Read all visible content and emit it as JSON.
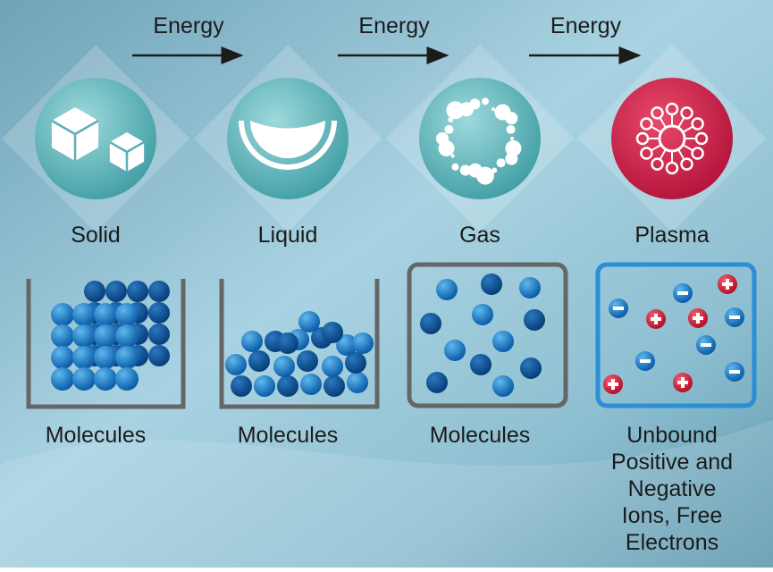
{
  "transitions": [
    {
      "label": "Energy"
    },
    {
      "label": "Energy"
    },
    {
      "label": "Energy"
    }
  ],
  "states": [
    {
      "name": "Solid",
      "caption": [
        "Molecules"
      ]
    },
    {
      "name": "Liquid",
      "caption": [
        "Molecules"
      ]
    },
    {
      "name": "Gas",
      "caption": [
        "Molecules"
      ]
    },
    {
      "name": "Plasma",
      "caption": [
        "Unbound",
        "Positive and",
        "Negative",
        "Ions, Free",
        "Electrons"
      ]
    }
  ]
}
